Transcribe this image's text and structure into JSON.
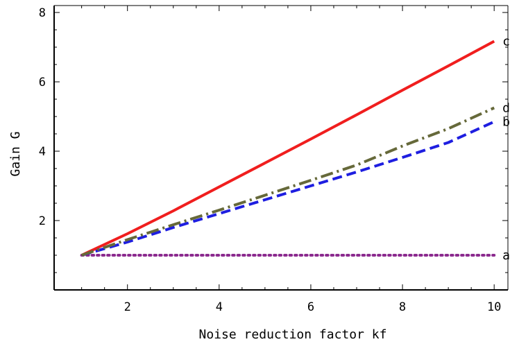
{
  "chart_data": {
    "type": "line",
    "title": "",
    "xlabel": "Noise reduction factor kf",
    "ylabel": "Gain G",
    "xlim": [
      0.4,
      10.3
    ],
    "ylim": [
      0.0,
      8.2
    ],
    "xticks": [
      2,
      4,
      6,
      8,
      10
    ],
    "yticks": [
      2,
      4,
      6,
      8
    ],
    "grid": false,
    "legend": "inline labels at right end of each curve",
    "series": [
      {
        "name": "a",
        "color": "#8B2A8E",
        "dash": "dotted",
        "x": [
          1,
          2,
          3,
          4,
          5,
          6,
          7,
          8,
          9,
          10
        ],
        "y": [
          1.0,
          1.0,
          1.0,
          1.0,
          1.0,
          1.0,
          1.0,
          1.0,
          1.0,
          1.0
        ]
      },
      {
        "name": "b",
        "color": "#1E1EE0",
        "dash": "dashed",
        "x": [
          1,
          2,
          3,
          4,
          5,
          6,
          7,
          8,
          9,
          10
        ],
        "y": [
          1.0,
          1.38,
          1.8,
          2.2,
          2.6,
          3.0,
          3.4,
          3.82,
          4.25,
          4.85
        ]
      },
      {
        "name": "c",
        "color": "#F01E1E",
        "dash": "solid",
        "x": [
          1,
          2,
          3,
          4,
          5,
          6,
          7,
          8,
          9,
          10
        ],
        "y": [
          1.0,
          1.62,
          2.28,
          2.97,
          3.66,
          4.35,
          5.05,
          5.76,
          6.46,
          7.17
        ]
      },
      {
        "name": "d",
        "color": "#66693A",
        "dash": "dashdot",
        "x": [
          1,
          2,
          3,
          4,
          5,
          6,
          7,
          8,
          9,
          10
        ],
        "y": [
          1.0,
          1.45,
          1.88,
          2.3,
          2.73,
          3.16,
          3.6,
          4.15,
          4.65,
          5.25
        ]
      }
    ]
  }
}
